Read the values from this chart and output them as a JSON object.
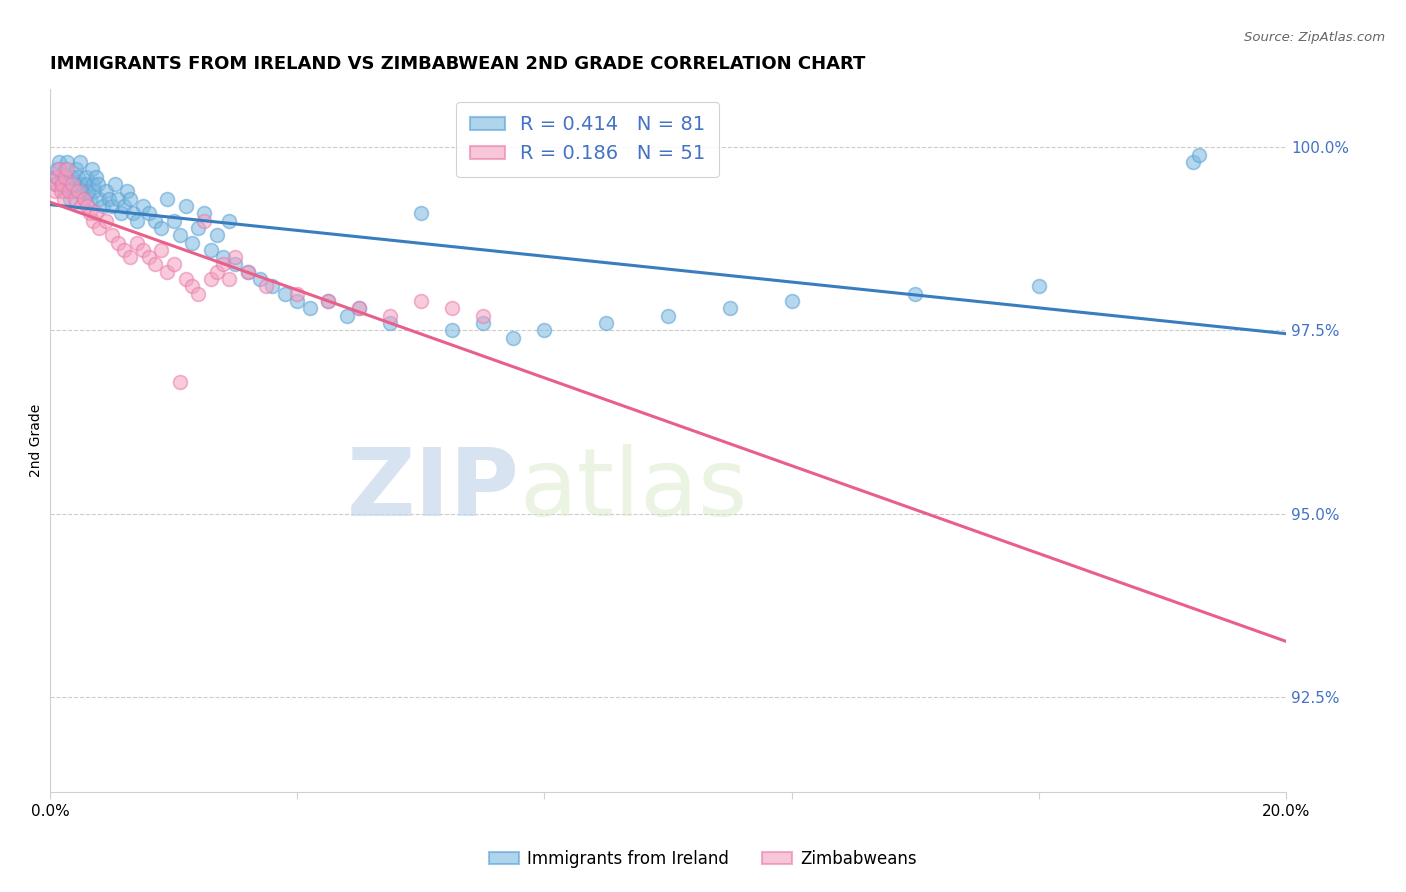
{
  "title": "IMMIGRANTS FROM IRELAND VS ZIMBABWEAN 2ND GRADE CORRELATION CHART",
  "source": "Source: ZipAtlas.com",
  "ylabel": "2nd Grade",
  "xmin": 0.0,
  "xmax": 20.0,
  "ymin": 91.2,
  "ymax": 100.8,
  "yticks": [
    92.5,
    95.0,
    97.5,
    100.0
  ],
  "ytick_labels": [
    "92.5%",
    "95.0%",
    "97.5%",
    "100.0%"
  ],
  "blue_color": "#7ab9e0",
  "pink_color": "#f4a0c0",
  "blue_edge_color": "#5a9fd4",
  "pink_edge_color": "#e87aaa",
  "blue_line_color": "#3a7dbf",
  "pink_line_color": "#e8608a",
  "blue_R": 0.414,
  "blue_N": 81,
  "pink_R": 0.186,
  "pink_N": 51,
  "watermark_zip": "ZIP",
  "watermark_atlas": "atlas",
  "blue_x": [
    0.08,
    0.1,
    0.12,
    0.15,
    0.18,
    0.2,
    0.22,
    0.25,
    0.28,
    0.3,
    0.32,
    0.35,
    0.38,
    0.4,
    0.42,
    0.45,
    0.48,
    0.5,
    0.52,
    0.55,
    0.58,
    0.6,
    0.62,
    0.65,
    0.68,
    0.7,
    0.72,
    0.75,
    0.78,
    0.8,
    0.85,
    0.9,
    0.95,
    1.0,
    1.05,
    1.1,
    1.15,
    1.2,
    1.25,
    1.3,
    1.35,
    1.4,
    1.5,
    1.6,
    1.7,
    1.8,
    1.9,
    2.0,
    2.1,
    2.2,
    2.3,
    2.4,
    2.5,
    2.6,
    2.7,
    2.8,
    2.9,
    3.0,
    3.2,
    3.4,
    3.6,
    3.8,
    4.0,
    4.2,
    4.5,
    4.8,
    5.0,
    5.5,
    6.0,
    6.5,
    7.0,
    7.5,
    8.0,
    9.0,
    10.0,
    11.0,
    12.0,
    14.0,
    16.0,
    18.5,
    18.6
  ],
  "blue_y": [
    99.5,
    99.6,
    99.7,
    99.8,
    99.5,
    99.6,
    99.4,
    99.7,
    99.8,
    99.5,
    99.3,
    99.6,
    99.4,
    99.5,
    99.7,
    99.6,
    99.8,
    99.5,
    99.4,
    99.3,
    99.6,
    99.5,
    99.4,
    99.3,
    99.7,
    99.5,
    99.4,
    99.6,
    99.5,
    99.3,
    99.2,
    99.4,
    99.3,
    99.2,
    99.5,
    99.3,
    99.1,
    99.2,
    99.4,
    99.3,
    99.1,
    99.0,
    99.2,
    99.1,
    99.0,
    98.9,
    99.3,
    99.0,
    98.8,
    99.2,
    98.7,
    98.9,
    99.1,
    98.6,
    98.8,
    98.5,
    99.0,
    98.4,
    98.3,
    98.2,
    98.1,
    98.0,
    97.9,
    97.8,
    97.9,
    97.7,
    97.8,
    97.6,
    99.1,
    97.5,
    97.6,
    97.4,
    97.5,
    97.6,
    97.7,
    97.8,
    97.9,
    98.0,
    98.1,
    99.8,
    99.9
  ],
  "pink_x": [
    0.08,
    0.1,
    0.12,
    0.15,
    0.18,
    0.2,
    0.22,
    0.25,
    0.28,
    0.3,
    0.35,
    0.4,
    0.45,
    0.5,
    0.55,
    0.6,
    0.65,
    0.7,
    0.75,
    0.8,
    0.9,
    1.0,
    1.1,
    1.2,
    1.3,
    1.4,
    1.5,
    1.6,
    1.7,
    1.8,
    1.9,
    2.0,
    2.1,
    2.2,
    2.3,
    2.4,
    2.5,
    2.6,
    2.7,
    2.8,
    2.9,
    3.0,
    3.2,
    3.5,
    4.0,
    4.5,
    5.0,
    5.5,
    6.0,
    6.5,
    7.0
  ],
  "pink_y": [
    99.4,
    99.5,
    99.6,
    99.7,
    99.4,
    99.5,
    99.3,
    99.6,
    99.7,
    99.4,
    99.5,
    99.3,
    99.4,
    99.2,
    99.3,
    99.2,
    99.1,
    99.0,
    99.1,
    98.9,
    99.0,
    98.8,
    98.7,
    98.6,
    98.5,
    98.7,
    98.6,
    98.5,
    98.4,
    98.6,
    98.3,
    98.4,
    96.8,
    98.2,
    98.1,
    98.0,
    99.0,
    98.2,
    98.3,
    98.4,
    98.2,
    98.5,
    98.3,
    98.1,
    98.0,
    97.9,
    97.8,
    97.7,
    97.9,
    97.8,
    97.7
  ]
}
